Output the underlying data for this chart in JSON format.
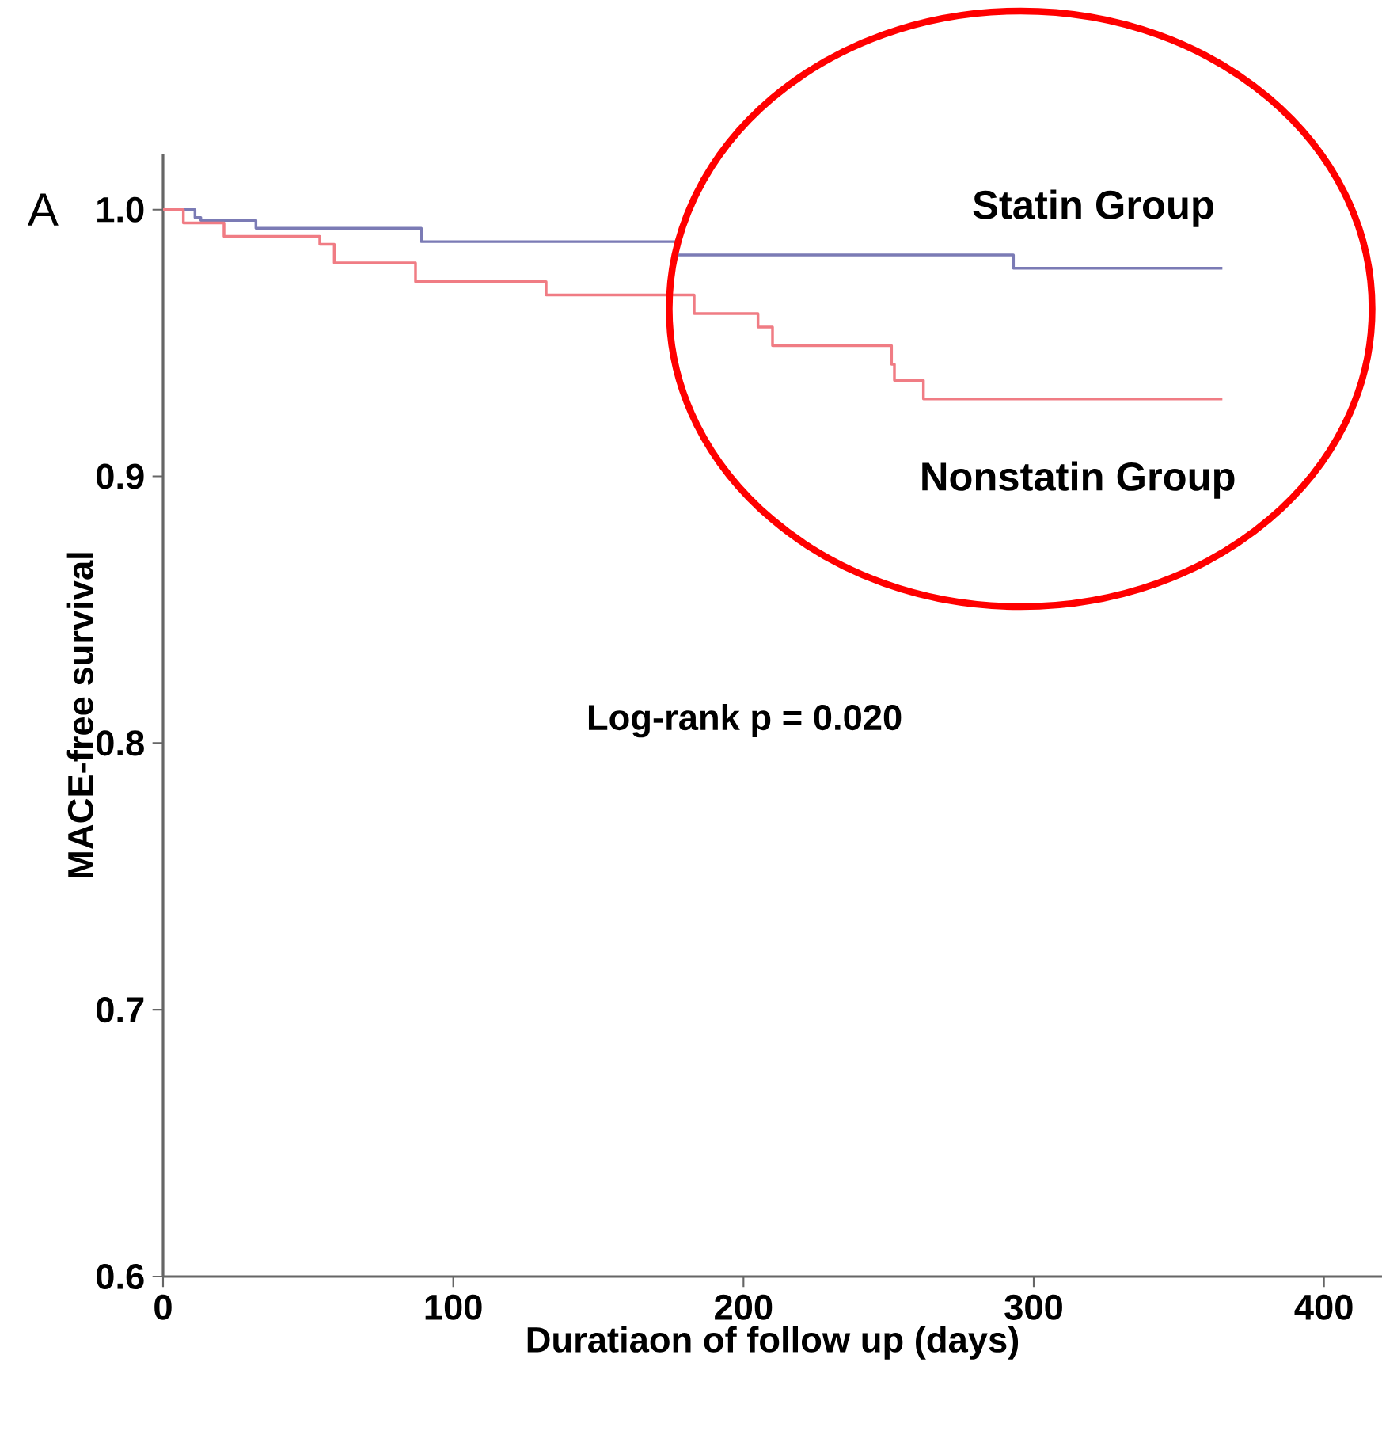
{
  "chart_data": {
    "type": "step",
    "xlabel": "Duratiaon of follow up (days)",
    "ylabel": "MACE-free survival",
    "annotations": [
      "Log-rank p = 0.020",
      "A"
    ],
    "xlim": [
      0,
      420
    ],
    "xticks": [
      0,
      100,
      200,
      300,
      400
    ],
    "ylim": [
      0.6,
      1.021
    ],
    "yticks": [
      {
        "value": 0.6,
        "label": "0.6"
      },
      {
        "value": 0.7,
        "label": "0.7"
      },
      {
        "value": 0.8,
        "label": "0.8"
      },
      {
        "value": 0.9,
        "label": "0.9"
      },
      {
        "value": 1.0,
        "label": "1.0"
      }
    ],
    "series": [
      {
        "name": "Statin Group",
        "color": "#7b7bb5",
        "x": [
          0,
          11,
          13,
          32,
          89,
          177,
          293,
          365
        ],
        "values": [
          1.0,
          0.997,
          0.996,
          0.993,
          0.988,
          0.983,
          0.978,
          0.978
        ]
      },
      {
        "name": "Nonstatin Group",
        "color": "#f07c84",
        "x": [
          0,
          7,
          21,
          54,
          59,
          87,
          132,
          183,
          205,
          210,
          251,
          252,
          262,
          365
        ],
        "values": [
          1.0,
          0.995,
          0.99,
          0.987,
          0.98,
          0.973,
          0.968,
          0.961,
          0.956,
          0.949,
          0.942,
          0.936,
          0.929,
          0.929
        ]
      }
    ]
  }
}
